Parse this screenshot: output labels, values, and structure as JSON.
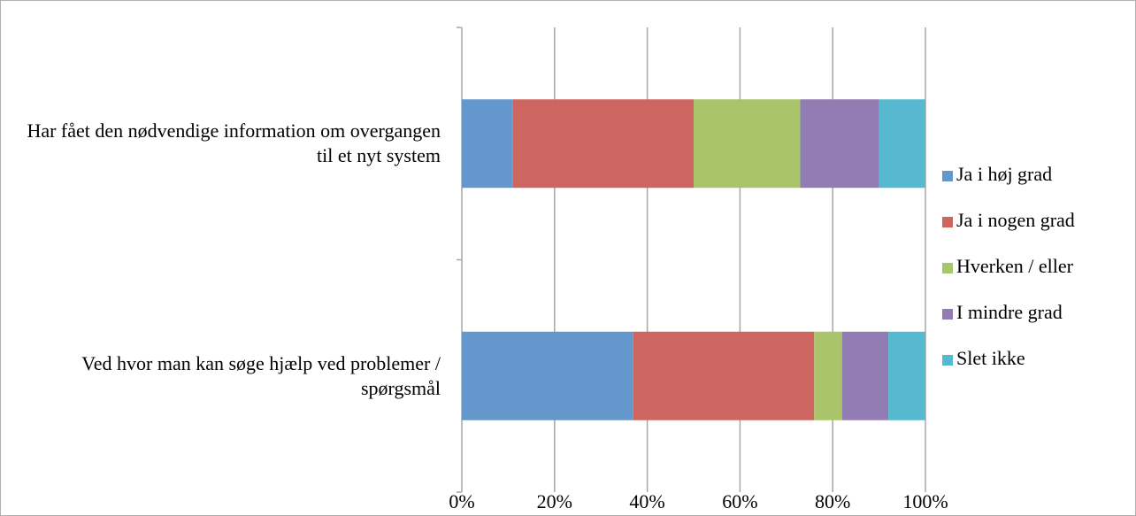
{
  "chart_data": {
    "type": "stacked_bar_horizontal",
    "categories": [
      "Har fået den nødvendige information om overgangen til et nyt system",
      "Ved hvor man kan søge hjælp ved problemer / spørgsmål"
    ],
    "series": [
      {
        "name": "Ja i høj grad",
        "color": "#6498cc",
        "values": [
          11,
          37
        ]
      },
      {
        "name": "Ja i nogen grad",
        "color": "#cd6660",
        "values": [
          39,
          39
        ]
      },
      {
        "name": "Hverken / eller",
        "color": "#a9c46b",
        "values": [
          23,
          6
        ]
      },
      {
        "name": "I mindre grad",
        "color": "#917cb3",
        "values": [
          17,
          10
        ]
      },
      {
        "name": "Slet ikke",
        "color": "#57b9cf",
        "values": [
          10,
          8
        ]
      }
    ],
    "xlim": [
      0,
      100
    ],
    "xticks": [
      {
        "value": 0,
        "label": "0%"
      },
      {
        "value": 20,
        "label": "20%"
      },
      {
        "value": 40,
        "label": "40%"
      },
      {
        "value": 60,
        "label": "60%"
      },
      {
        "value": 80,
        "label": "80%"
      },
      {
        "value": 100,
        "label": "100%"
      }
    ],
    "grid": true,
    "legend": "right"
  }
}
